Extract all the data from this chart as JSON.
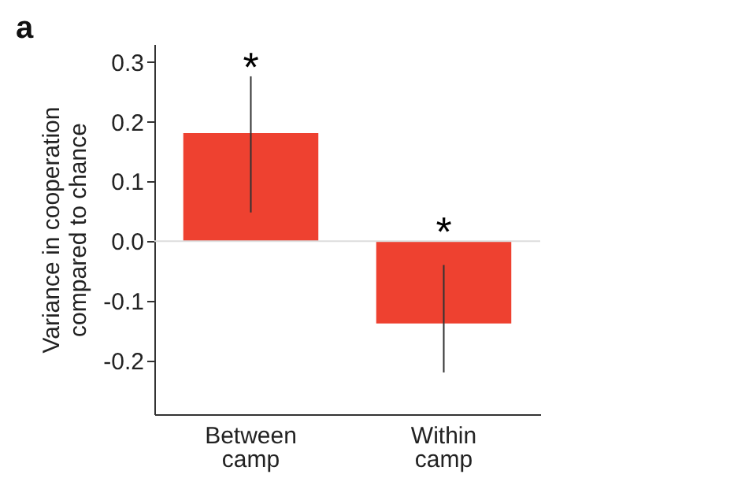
{
  "chart_data": {
    "type": "bar",
    "title": "a",
    "ylabel": "Variance in cooperation compared to chance",
    "categories": [
      "Between camp",
      "Within camp"
    ],
    "values": [
      0.181,
      -0.138
    ],
    "color": "#ee4130",
    "errors": [
      [
        0.048,
        0.276
      ],
      [
        -0.22,
        -0.04
      ]
    ],
    "ylim": [
      -0.29,
      0.33
    ],
    "yticks": [
      -0.2,
      {
        "value": -0.1,
        "label": "-0.1"
      },
      {
        "value": 0,
        "label": "0.0"
      },
      0.1,
      0.2,
      0.3
    ],
    "ref_lines": [
      {
        "axis": "y",
        "value": 0,
        "color": "#dddddd"
      }
    ],
    "annotations": [
      "*",
      "*"
    ],
    "grid": false
  }
}
